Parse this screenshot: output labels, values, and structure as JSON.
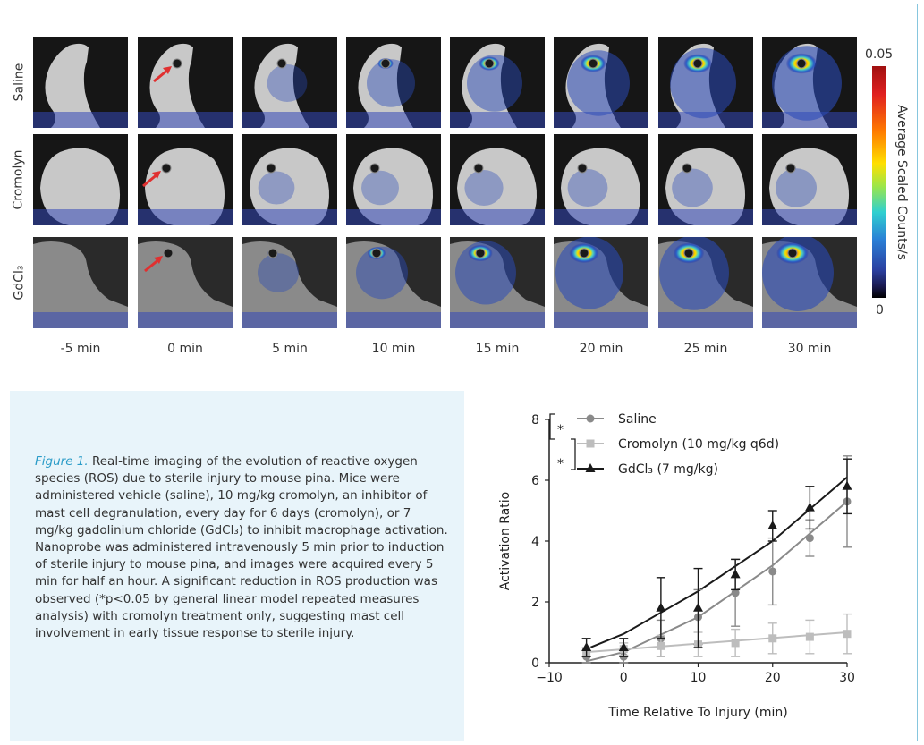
{
  "image_grid": {
    "rows": [
      "Saline",
      "Cromolyn",
      "GdCl₃"
    ],
    "timepoints": [
      "-5 min",
      "0 min",
      "5 min",
      "10 min",
      "15 min",
      "20 min",
      "25 min",
      "30 min"
    ],
    "signal_level": {
      "Saline": [
        0,
        0,
        0.12,
        0.35,
        0.55,
        0.75,
        0.85,
        0.95
      ],
      "Cromolyn": [
        0,
        0,
        0.02,
        0.05,
        0.08,
        0.12,
        0.14,
        0.15
      ],
      "GdCl₃": [
        0,
        0,
        0.15,
        0.45,
        0.7,
        0.9,
        0.95,
        1.0
      ]
    }
  },
  "colorbar": {
    "max_label": "0.05",
    "min_label": "0",
    "title": "Average Scaled Counts/s"
  },
  "caption": {
    "figure_label": "Figure 1.",
    "text": " Real-time imaging of the evolution of reactive oxygen species (ROS) due to sterile injury to mouse pina. Mice were administered vehicle (saline), 10 mg/kg cromolyn, an inhibitor of mast cell degranulation, every day for 6 days (cromolyn), or 7 mg/kg gadolinium chloride (GdCl₃) to inhibit macrophage activation. Nanoprobe was administered intravenously 5 min prior to induction of sterile injury to mouse pina, and images were acquired every 5 min for half an hour. A significant reduction in ROS production was observed (*p<0.05 by general linear model repeated measures analysis) with cromolyn treatment only, suggesting mast cell involvement in early tissue response to sterile injury."
  },
  "chart_data": {
    "type": "line",
    "xlabel": "Time Relative To Injury (min)",
    "ylabel": "Activation Ratio",
    "xlim": [
      -10,
      30
    ],
    "ylim": [
      0,
      8
    ],
    "xticks": [
      "−10",
      "0",
      "10",
      "20",
      "30"
    ],
    "yticks": [
      "0",
      "2",
      "4",
      "6",
      "8"
    ],
    "legend_position": "top-left",
    "significance_marks": [
      "*",
      "*"
    ],
    "series": [
      {
        "name": "Saline",
        "marker": "circle",
        "color": "#8a8a8a",
        "x": [
          -5,
          0,
          5,
          10,
          15,
          20,
          25,
          30
        ],
        "y": [
          0.2,
          0.2,
          0.8,
          1.5,
          2.3,
          3.0,
          4.1,
          5.3
        ],
        "err": [
          0.2,
          0.2,
          0.6,
          0.9,
          1.1,
          1.1,
          0.6,
          1.5
        ],
        "fit": [
          [
            -5,
            0.05
          ],
          [
            0,
            0.35
          ],
          [
            10,
            1.5
          ],
          [
            20,
            3.2
          ],
          [
            30,
            5.3
          ]
        ]
      },
      {
        "name": "Cromolyn (10 mg/kg q6d)",
        "marker": "square",
        "color": "#bdbdbd",
        "x": [
          -5,
          0,
          5,
          10,
          15,
          20,
          25,
          30
        ],
        "y": [
          0.35,
          0.45,
          0.55,
          0.6,
          0.65,
          0.8,
          0.85,
          0.95
        ],
        "err": [
          0.15,
          0.2,
          0.35,
          0.4,
          0.45,
          0.5,
          0.55,
          0.65
        ],
        "fit": [
          [
            -5,
            0.35
          ],
          [
            30,
            1.0
          ]
        ]
      },
      {
        "name": "GdCl₃ (7 mg/kg)",
        "marker": "triangle",
        "color": "#1a1a1a",
        "x": [
          -5,
          0,
          5,
          10,
          15,
          20,
          25,
          30
        ],
        "y": [
          0.5,
          0.5,
          1.8,
          1.8,
          2.9,
          4.5,
          5.1,
          5.8
        ],
        "err": [
          0.3,
          0.3,
          1.0,
          1.3,
          0.5,
          0.5,
          0.7,
          0.9
        ],
        "fit": [
          [
            -5,
            0.45
          ],
          [
            0,
            0.95
          ],
          [
            10,
            2.35
          ],
          [
            20,
            4.0
          ],
          [
            30,
            6.1
          ]
        ]
      }
    ]
  }
}
